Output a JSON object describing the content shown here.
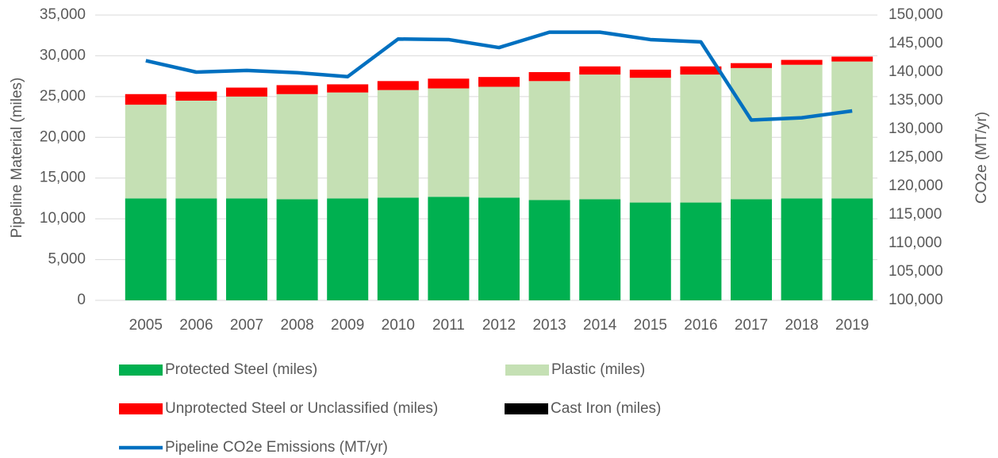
{
  "chart_data": {
    "type": "bar",
    "stacked": true,
    "y_label": "Pipeline Material (miles)",
    "y2_label": "CO2e (MT/yr)",
    "categories": [
      "2005",
      "2006",
      "2007",
      "2008",
      "2009",
      "2010",
      "2011",
      "2012",
      "2013",
      "2014",
      "2015",
      "2016",
      "2017",
      "2018",
      "2019"
    ],
    "series": [
      {
        "name": "Protected Steel (miles)",
        "color": "#00b050",
        "values": [
          12500,
          12500,
          12500,
          12400,
          12500,
          12600,
          12700,
          12600,
          12300,
          12400,
          12000,
          12000,
          12400,
          12500,
          12500
        ]
      },
      {
        "name": "Plastic (miles)",
        "color": "#c5e0b4",
        "values": [
          11500,
          12000,
          12500,
          12900,
          13000,
          13200,
          13300,
          13600,
          14600,
          15300,
          15300,
          15700,
          16100,
          16400,
          16800
        ]
      },
      {
        "name": "Unprotected Steel or Unclassified (miles)",
        "color": "#ff0000",
        "values": [
          1300,
          1100,
          1100,
          1100,
          1000,
          1100,
          1200,
          1200,
          1100,
          1000,
          1000,
          1000,
          600,
          600,
          600
        ]
      },
      {
        "name": "Cast Iron (miles)",
        "color": "#000000",
        "values": [
          0,
          0,
          0,
          0,
          0,
          0,
          0,
          0,
          0,
          0,
          0,
          0,
          0,
          0,
          0
        ]
      },
      {
        "name": "Pipeline CO2e Emissions (MT/yr)",
        "color": "#0070c0",
        "type": "line",
        "axis": "y2",
        "values": [
          142000,
          140000,
          140300,
          139900,
          139200,
          145800,
          145700,
          144300,
          147000,
          147000,
          145700,
          145300,
          131600,
          132000,
          133200
        ]
      }
    ],
    "ylim": [
      0,
      35000
    ],
    "yticks": [
      0,
      {
        "value": 5000,
        "label": "5,000"
      },
      {
        "value": 10000,
        "label": "10,000"
      },
      {
        "value": 15000,
        "label": "15,000"
      },
      {
        "value": 20000,
        "label": "20,000"
      },
      {
        "value": 25000,
        "label": "25,000"
      },
      {
        "value": 30000,
        "label": "30,000"
      },
      {
        "value": 35000,
        "label": "35,000"
      }
    ],
    "y2lim": [
      100000,
      150000
    ],
    "y2ticks": [
      {
        "value": 100000,
        "label": "100,000"
      },
      {
        "value": 105000,
        "label": "105,000"
      },
      {
        "value": 110000,
        "label": "110,000"
      },
      {
        "value": 115000,
        "label": "115,000"
      },
      {
        "value": 120000,
        "label": "120,000"
      },
      {
        "value": 125000,
        "label": "125,000"
      },
      {
        "value": 130000,
        "label": "130,000"
      },
      {
        "value": 135000,
        "label": "135,000"
      },
      {
        "value": 140000,
        "label": "140,000"
      },
      {
        "value": 145000,
        "label": "145,000"
      },
      {
        "value": 150000,
        "label": "150,000"
      }
    ],
    "grid": true,
    "legend": "bottom"
  }
}
